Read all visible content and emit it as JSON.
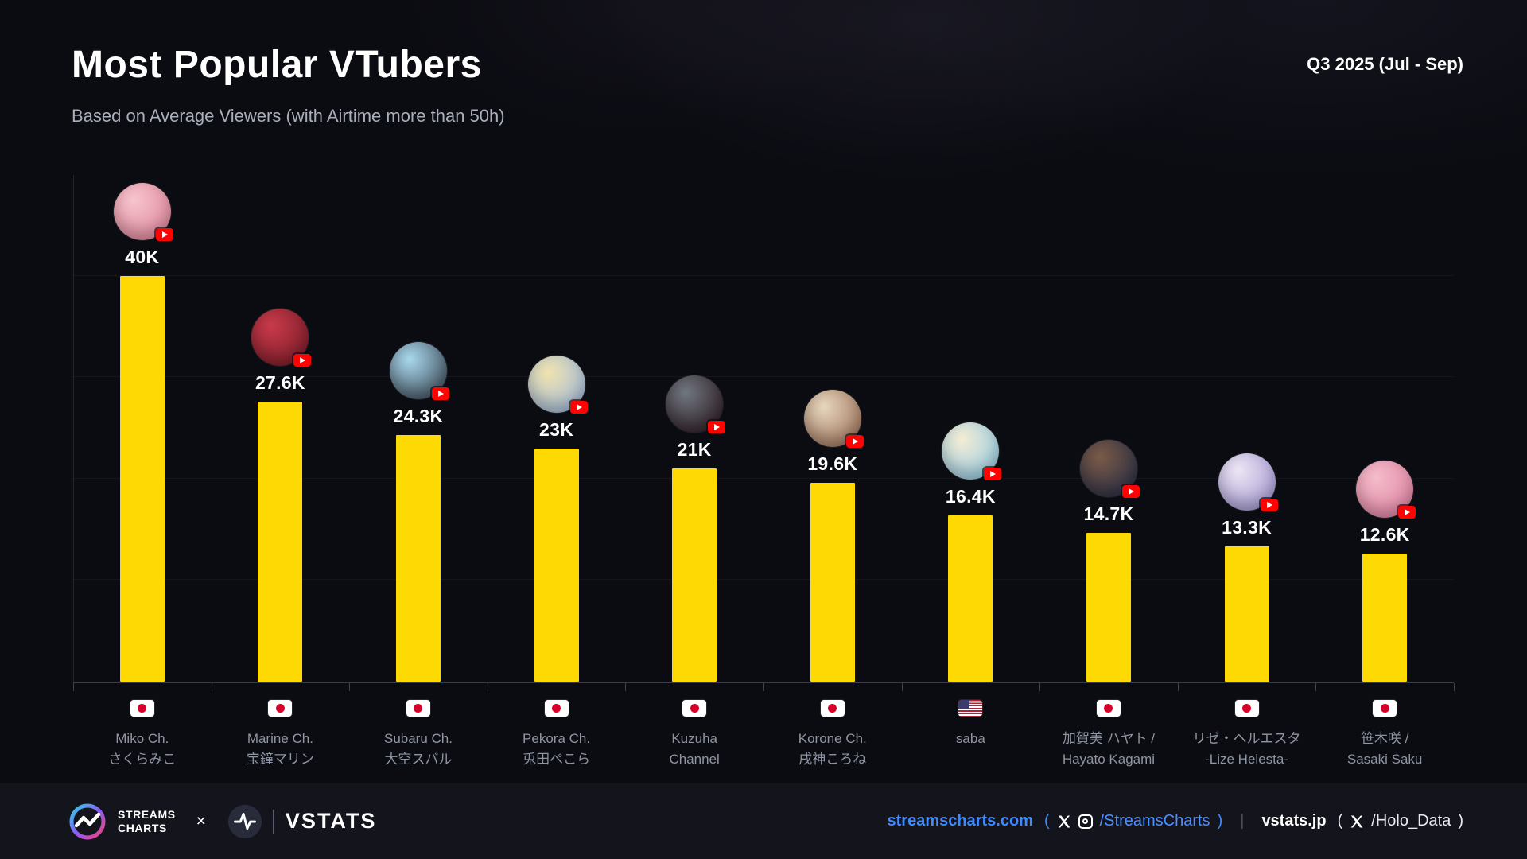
{
  "header": {
    "title": "Most Popular VTubers",
    "subtitle": "Based on Average Viewers (with Airtime more than 50h)",
    "period": "Q3 2025 (Jul - Sep)"
  },
  "chart_data": {
    "type": "bar",
    "title": "Most Popular VTubers",
    "subtitle": "Based on Average Viewers (with Airtime more than 50h)",
    "period": "Q3 2025 (Jul - Sep)",
    "metric": "Average Viewers",
    "bar_color": "#ffd903",
    "ylim": [
      0,
      40000
    ],
    "gridline_step": 10000,
    "legend": "none",
    "categories": [
      "Miko Ch. さくらみこ",
      "Marine Ch. 宝鐘マリン",
      "Subaru Ch. 大空スバル",
      "Pekora Ch. 兎田ぺこら",
      "Kuzuha Channel",
      "Korone Ch. 戌神ころね",
      "saba",
      "加賀美 ハヤト / Hayato Kagami",
      "リゼ・ヘルエスタ -Lize Helesta-",
      "笹木咲 / Sasaki Saku"
    ],
    "values": [
      40000,
      27600,
      24300,
      23000,
      21000,
      19600,
      16400,
      14700,
      13300,
      12600
    ],
    "value_labels": [
      "40K",
      "27.6K",
      "24.3K",
      "23K",
      "21K",
      "19.6K",
      "16.4K",
      "14.7K",
      "13.3K",
      "12.6K"
    ],
    "countries": [
      "jp",
      "jp",
      "jp",
      "jp",
      "jp",
      "jp",
      "us",
      "jp",
      "jp",
      "jp"
    ],
    "vtubers": [
      {
        "value_label": "40K",
        "value_k": 40,
        "name_line1": "Miko Ch.",
        "name_line2": "さくらみこ",
        "flag": "jp",
        "platform": "youtube-icon",
        "avatar_colors": [
          "#f6c4cc",
          "#dd7e96"
        ]
      },
      {
        "value_label": "27.6K",
        "value_k": 27.6,
        "name_line1": "Marine Ch.",
        "name_line2": "宝鐘マリン",
        "flag": "jp",
        "platform": "youtube-icon",
        "avatar_colors": [
          "#c83a4a",
          "#701824"
        ]
      },
      {
        "value_label": "24.3K",
        "value_k": 24.3,
        "name_line1": "Subaru Ch.",
        "name_line2": "大空スバル",
        "flag": "jp",
        "platform": "youtube-icon",
        "avatar_colors": [
          "#a8d8ec",
          "#303845"
        ]
      },
      {
        "value_label": "23K",
        "value_k": 23,
        "name_line1": "Pekora Ch.",
        "name_line2": "兎田ぺこら",
        "flag": "jp",
        "platform": "youtube-icon",
        "avatar_colors": [
          "#f0e2ae",
          "#93b4e4"
        ]
      },
      {
        "value_label": "21K",
        "value_k": 21,
        "name_line1": "Kuzuha",
        "name_line2": "Channel",
        "flag": "jp",
        "platform": "youtube-icon",
        "avatar_colors": [
          "#707680",
          "#241016"
        ]
      },
      {
        "value_label": "19.6K",
        "value_k": 19.6,
        "name_line1": "Korone Ch.",
        "name_line2": "戌神ころね",
        "flag": "jp",
        "platform": "youtube-icon",
        "avatar_colors": [
          "#e6d6bd",
          "#92624a"
        ]
      },
      {
        "value_label": "16.4K",
        "value_k": 16.4,
        "name_line1": "saba",
        "name_line2": "",
        "flag": "us",
        "platform": "youtube-icon",
        "avatar_colors": [
          "#f4ecd4",
          "#86c6e6"
        ]
      },
      {
        "value_label": "14.7K",
        "value_k": 14.7,
        "name_line1": "加賀美 ハヤト /",
        "name_line2": "Hayato Kagami",
        "flag": "jp",
        "platform": "youtube-icon",
        "avatar_colors": [
          "#7a5a46",
          "#1c2746"
        ]
      },
      {
        "value_label": "13.3K",
        "value_k": 13.3,
        "name_line1": "リゼ・ヘルエスタ",
        "name_line2": "-Lize Helesta-",
        "flag": "jp",
        "platform": "youtube-icon",
        "avatar_colors": [
          "#ece6f4",
          "#9a8cce"
        ]
      },
      {
        "value_label": "12.6K",
        "value_k": 12.6,
        "name_line1": "笹木咲 /",
        "name_line2": "Sasaki Saku",
        "flag": "jp",
        "platform": "youtube-icon",
        "avatar_colors": [
          "#f4bcca",
          "#dc7a9c"
        ]
      }
    ]
  },
  "footer": {
    "streams_charts_logo": {
      "line1": "STREAMS",
      "line2": "CHARTS"
    },
    "collab_separator": "×",
    "vstats_logo_text": "VSTATS",
    "streamscharts_link": "streamscharts.com",
    "streamscharts_social": {
      "open": "(",
      "handle": "/StreamsCharts",
      "close": ")"
    },
    "divider": "|",
    "vstats_link": "vstats.jp",
    "vstats_social": {
      "open": "(",
      "handle": "/Holo_Data",
      "close": ")"
    },
    "accent_color": "#3e8bff",
    "bar_color": "#ffd903"
  }
}
